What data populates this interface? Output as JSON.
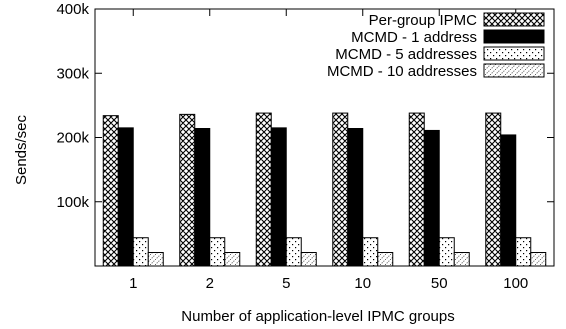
{
  "chart_data": {
    "type": "bar",
    "xlabel": "Number of application-level IPMC groups",
    "ylabel": "Sends/sec",
    "ylim": [
      0,
      400000
    ],
    "yticks": [
      {
        "value": 100000,
        "label": "100k"
      },
      {
        "value": 200000,
        "label": "200k"
      },
      {
        "value": 300000,
        "label": "300k"
      },
      {
        "value": 400000,
        "label": "400k"
      }
    ],
    "categories": [
      "1",
      "2",
      "5",
      "10",
      "50",
      "100"
    ],
    "legend_position": "top-right",
    "grid": false,
    "series": [
      {
        "name": "Per-group IPMC",
        "pattern": "crosshatch",
        "values": [
          234000,
          236000,
          238000,
          238000,
          238000,
          238000
        ]
      },
      {
        "name": "MCMD - 1 address",
        "pattern": "solid",
        "values": [
          215000,
          214000,
          215000,
          214000,
          211000,
          204000
        ]
      },
      {
        "name": "MCMD - 5 addresses",
        "pattern": "sparse-dots",
        "values": [
          44000,
          44000,
          44000,
          44000,
          44000,
          44000
        ]
      },
      {
        "name": "MCMD - 10 addresses",
        "pattern": "diagonal-dots",
        "values": [
          21000,
          21000,
          21000,
          21000,
          21000,
          21000
        ]
      }
    ]
  }
}
